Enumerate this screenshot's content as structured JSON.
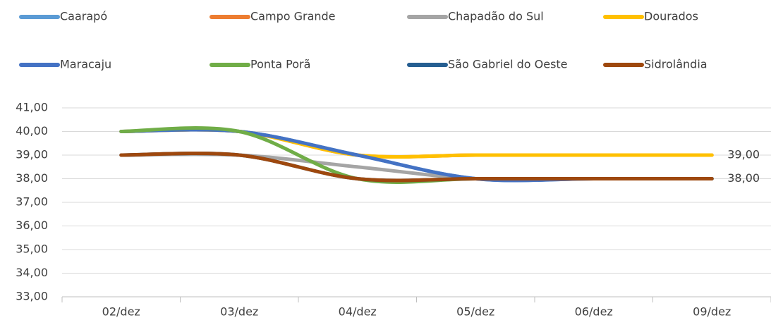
{
  "chart_data": {
    "type": "line",
    "categories": [
      "02/dez",
      "03/dez",
      "04/dez",
      "05/dez",
      "06/dez",
      "09/dez"
    ],
    "series": [
      {
        "name": "Caarapó",
        "color": "#5b9bd5",
        "values": [
          40,
          40,
          39,
          38,
          38,
          38
        ]
      },
      {
        "name": "Campo Grande",
        "color": "#ed7d31",
        "values": [
          40,
          40,
          39,
          39,
          39,
          39
        ]
      },
      {
        "name": "Chapadão do Sul",
        "color": "#a5a5a5",
        "values": [
          39,
          39,
          38.5,
          38,
          38,
          38
        ]
      },
      {
        "name": "Dourados",
        "color": "#ffc000",
        "values": [
          40,
          40,
          39,
          39,
          39,
          39
        ],
        "value_labels": [
          null,
          null,
          null,
          null,
          null,
          "39,00"
        ]
      },
      {
        "name": "Maracaju",
        "color": "#4472c4",
        "values": [
          40,
          40,
          39,
          38,
          38,
          38
        ]
      },
      {
        "name": "Ponta Porã",
        "color": "#70ad47",
        "values": [
          40,
          40,
          38,
          38,
          38,
          38
        ]
      },
      {
        "name": "São Gabriel do Oeste",
        "color": "#255e91",
        "values": [
          39,
          39,
          38,
          38,
          38,
          38
        ]
      },
      {
        "name": "Sidrolândia",
        "color": "#9e480e",
        "values": [
          39,
          39,
          38,
          38,
          38,
          38
        ],
        "value_labels": [
          null,
          null,
          null,
          null,
          null,
          "38,00"
        ]
      }
    ],
    "ylim": [
      33,
      41
    ],
    "yticks": [
      {
        "value": 33,
        "label": "33,00"
      },
      {
        "value": 34,
        "label": "34,00"
      },
      {
        "value": 35,
        "label": "35,00"
      },
      {
        "value": 36,
        "label": "36,00"
      },
      {
        "value": 37,
        "label": "37,00"
      },
      {
        "value": 38,
        "label": "38,00"
      },
      {
        "value": 39,
        "label": "39,00"
      },
      {
        "value": 40,
        "label": "40,00"
      },
      {
        "value": 41,
        "label": "41,00"
      }
    ],
    "grid": true,
    "smooth": true,
    "legend": "top"
  }
}
